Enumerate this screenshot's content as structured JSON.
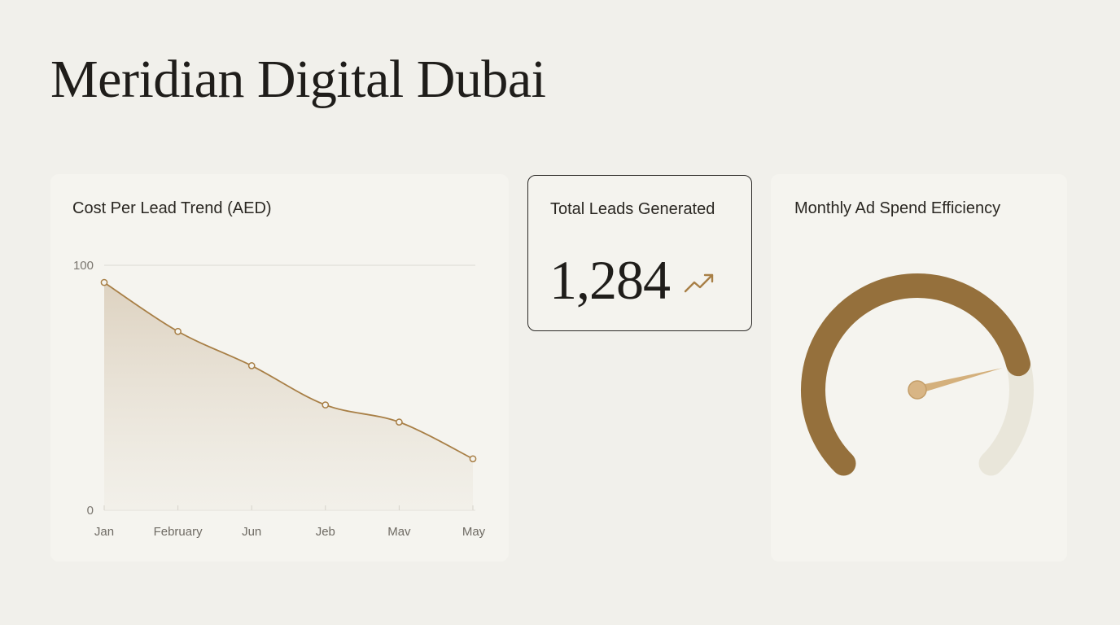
{
  "page": {
    "title": "Meridian Digital Dubai"
  },
  "colors": {
    "background": "#f1f0eb",
    "card": "#f5f4ef",
    "accent": "#a87f46",
    "accent_dark": "#95703c",
    "accent_light": "#dcc8a6",
    "track": "#e9e6da",
    "text": "#2a2722"
  },
  "cost_per_lead": {
    "title": "Cost Per Lead Trend (AED)"
  },
  "total_leads": {
    "title": "Total Leads Generated",
    "value": "1,284",
    "trend_icon": "trend-up-icon"
  },
  "ad_spend_efficiency": {
    "title": "Monthly Ad Spend Efficiency",
    "gauge_value": 0.78
  },
  "chart_data": {
    "type": "area",
    "title": "Cost Per Lead Trend (AED)",
    "categories": [
      "Jan",
      "February",
      "Jun",
      "Jeb",
      "Mav",
      "May"
    ],
    "values": [
      93,
      73,
      59,
      43,
      36,
      21
    ],
    "y_tick_labels": [
      "100",
      "0"
    ],
    "ylim": [
      0,
      100
    ],
    "grid": "top line only",
    "legend": "none"
  }
}
